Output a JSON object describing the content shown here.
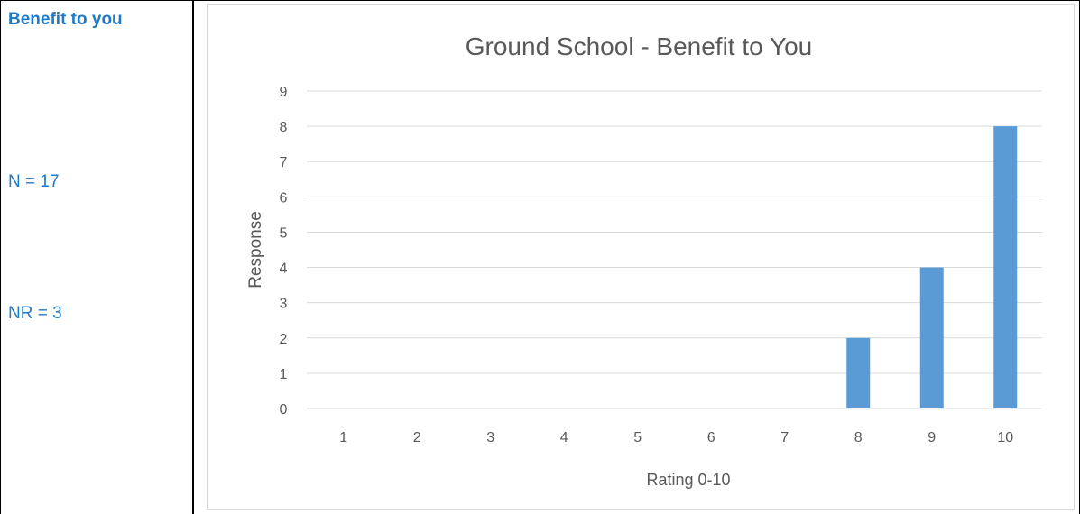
{
  "side_cell": {
    "title": "Benefit to you",
    "n_label": "N = 17",
    "nr_label": "NR = 3"
  },
  "colors": {
    "bar": "#5b9bd5",
    "side_text": "#1f7ac8",
    "gridline": "#d9d9d9"
  },
  "chart_data": {
    "type": "bar",
    "title": "Ground School - Benefit to You",
    "xlabel": "Rating  0-10",
    "ylabel": "Response",
    "categories": [
      "1",
      "2",
      "3",
      "4",
      "5",
      "6",
      "7",
      "8",
      "9",
      "10"
    ],
    "values": [
      0,
      0,
      0,
      0,
      0,
      0,
      0,
      2,
      4,
      8
    ],
    "ylim": [
      0,
      9
    ],
    "yticks": [
      0,
      1,
      2,
      3,
      4,
      5,
      6,
      7,
      8,
      9
    ],
    "grid": true,
    "legend": false
  }
}
